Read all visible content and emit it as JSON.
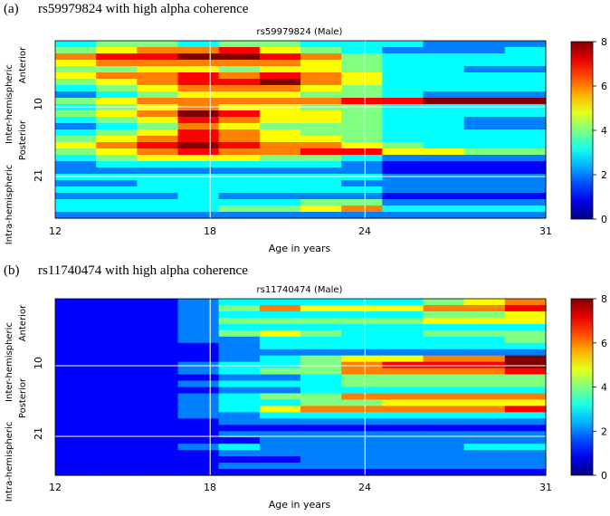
{
  "chart_data": [
    {
      "type": "heatmap",
      "panel_label": "(a)",
      "panel_title": "rs59979824 with high alpha coherence",
      "title": "rs59979824 (Male)",
      "xlabel": "Age in years",
      "x_ticks": [
        "12",
        "18",
        "24",
        "31"
      ],
      "xlim": [
        12,
        31
      ],
      "y_tick_labels": [
        "10",
        "21"
      ],
      "y_group_labels": [
        "Anterior",
        "Posterior",
        "Inter-hemispheric",
        "Intra-hemispheric"
      ],
      "colorbar": {
        "ticks": [
          "0",
          "2",
          "4",
          "6",
          "8"
        ],
        "range": [
          0,
          8
        ],
        "colormap": "jet"
      },
      "rows": 28,
      "grid": true,
      "row_values": [
        [
          3,
          4,
          4,
          3,
          4,
          4,
          3,
          3,
          3,
          2,
          2,
          2
        ],
        [
          4,
          5,
          6,
          6,
          7,
          5,
          4,
          3,
          2,
          2,
          2,
          3
        ],
        [
          6,
          7,
          7,
          8,
          8,
          7,
          6,
          4,
          3,
          3,
          3,
          3
        ],
        [
          5,
          6,
          6,
          6,
          6,
          6,
          5,
          4,
          3,
          3,
          3,
          3
        ],
        [
          4,
          4,
          5,
          5,
          4,
          5,
          5,
          4,
          3,
          3,
          2,
          2
        ],
        [
          5,
          6,
          6,
          7,
          6,
          7,
          6,
          5,
          3,
          3,
          3,
          3
        ],
        [
          4,
          5,
          6,
          7,
          7,
          8,
          6,
          5,
          3,
          3,
          3,
          3
        ],
        [
          3,
          4,
          5,
          6,
          6,
          6,
          5,
          4,
          3,
          3,
          3,
          3
        ],
        [
          2,
          3,
          4,
          5,
          5,
          5,
          4,
          4,
          3,
          2,
          2,
          2
        ],
        [
          4,
          5,
          6,
          6,
          6,
          6,
          6,
          7,
          7,
          8,
          8,
          8
        ],
        [
          3,
          4,
          5,
          6,
          5,
          5,
          4,
          4,
          3,
          3,
          3,
          3
        ],
        [
          4,
          5,
          6,
          8,
          7,
          5,
          5,
          4,
          3,
          3,
          3,
          3
        ],
        [
          3,
          4,
          5,
          7,
          6,
          5,
          5,
          4,
          3,
          3,
          2,
          2
        ],
        [
          2,
          3,
          4,
          6,
          5,
          4,
          4,
          4,
          3,
          3,
          2,
          2
        ],
        [
          3,
          4,
          5,
          7,
          6,
          5,
          4,
          4,
          3,
          3,
          3,
          3
        ],
        [
          4,
          5,
          6,
          7,
          6,
          5,
          5,
          4,
          3,
          3,
          3,
          3
        ],
        [
          5,
          6,
          7,
          8,
          7,
          6,
          6,
          5,
          4,
          3,
          3,
          3
        ],
        [
          4,
          5,
          6,
          7,
          6,
          6,
          7,
          7,
          5,
          5,
          4,
          4
        ],
        [
          3,
          4,
          5,
          5,
          5,
          4,
          4,
          3,
          2,
          2,
          2,
          2
        ],
        [
          2,
          3,
          3,
          3,
          3,
          3,
          3,
          2,
          1,
          1,
          1,
          1
        ],
        [
          2,
          2,
          2,
          2,
          2,
          2,
          2,
          2,
          1,
          1,
          1,
          1
        ],
        [
          3,
          3,
          3,
          3,
          3,
          3,
          3,
          3,
          2,
          2,
          2,
          2
        ],
        [
          2,
          2,
          3,
          3,
          3,
          3,
          3,
          2,
          2,
          2,
          2,
          2
        ],
        [
          3,
          3,
          3,
          3,
          3,
          3,
          3,
          3,
          2,
          2,
          2,
          2
        ],
        [
          2,
          2,
          2,
          3,
          2,
          2,
          2,
          2,
          1,
          1,
          1,
          1
        ],
        [
          3,
          3,
          3,
          3,
          3,
          3,
          4,
          4,
          2,
          2,
          2,
          2
        ],
        [
          3,
          3,
          3,
          3,
          4,
          4,
          5,
          6,
          3,
          3,
          3,
          3
        ],
        [
          2,
          2,
          2,
          2,
          2,
          2,
          2,
          2,
          2,
          2,
          2,
          2
        ]
      ]
    },
    {
      "type": "heatmap",
      "panel_label": "(b)",
      "panel_title": "rs11740474 with high alpha coherence",
      "title": "rs11740474 (Male)",
      "xlabel": "Age in years",
      "x_ticks": [
        "12",
        "18",
        "24",
        "31"
      ],
      "xlim": [
        12,
        31
      ],
      "y_tick_labels": [
        "10",
        "21"
      ],
      "y_group_labels": [
        "Anterior",
        "Posterior",
        "Inter-hemispheric",
        "Intra-hemispheric"
      ],
      "colorbar": {
        "ticks": [
          "0",
          "2",
          "4",
          "6",
          "8"
        ],
        "range": [
          0,
          8
        ],
        "colormap": "jet"
      },
      "rows": 28,
      "grid": true,
      "row_values": [
        [
          1,
          1,
          1,
          2,
          3,
          3,
          3,
          3,
          3,
          4,
          5,
          6
        ],
        [
          1,
          1,
          1,
          2,
          4,
          6,
          5,
          5,
          5,
          6,
          6,
          7
        ],
        [
          1,
          1,
          1,
          2,
          3,
          3,
          3,
          3,
          3,
          4,
          4,
          5
        ],
        [
          1,
          1,
          1,
          2,
          4,
          4,
          4,
          4,
          4,
          5,
          5,
          5
        ],
        [
          1,
          1,
          1,
          2,
          3,
          3,
          3,
          3,
          3,
          3,
          3,
          3
        ],
        [
          1,
          1,
          1,
          2,
          4,
          5,
          4,
          3,
          3,
          4,
          4,
          4
        ],
        [
          1,
          1,
          1,
          2,
          2,
          3,
          3,
          3,
          3,
          3,
          3,
          4
        ],
        [
          1,
          1,
          1,
          1,
          2,
          3,
          3,
          3,
          3,
          3,
          3,
          3
        ],
        [
          1,
          1,
          1,
          1,
          2,
          2,
          2,
          2,
          2,
          2,
          2,
          2
        ],
        [
          1,
          1,
          1,
          1,
          2,
          3,
          4,
          5,
          5,
          6,
          6,
          8
        ],
        [
          1,
          1,
          1,
          2,
          3,
          3,
          4,
          6,
          7,
          7,
          7,
          8
        ],
        [
          1,
          1,
          1,
          2,
          3,
          4,
          4,
          6,
          6,
          6,
          6,
          7
        ],
        [
          1,
          1,
          1,
          1,
          2,
          2,
          3,
          4,
          4,
          4,
          4,
          4
        ],
        [
          1,
          1,
          1,
          2,
          3,
          3,
          3,
          4,
          4,
          4,
          4,
          4
        ],
        [
          1,
          1,
          1,
          1,
          2,
          2,
          3,
          3,
          3,
          3,
          3,
          3
        ],
        [
          1,
          1,
          1,
          2,
          3,
          4,
          4,
          6,
          6,
          6,
          6,
          6
        ],
        [
          1,
          1,
          1,
          2,
          3,
          3,
          4,
          4,
          5,
          5,
          5,
          5
        ],
        [
          1,
          1,
          1,
          2,
          3,
          5,
          6,
          6,
          6,
          6,
          6,
          7
        ],
        [
          1,
          1,
          1,
          2,
          2,
          3,
          3,
          3,
          3,
          3,
          3,
          3
        ],
        [
          1,
          1,
          1,
          1,
          2,
          2,
          2,
          2,
          2,
          2,
          2,
          2
        ],
        [
          1,
          1,
          1,
          1,
          1,
          1,
          1,
          1,
          1,
          1,
          1,
          1
        ],
        [
          1,
          1,
          1,
          1,
          2,
          2,
          2,
          2,
          2,
          2,
          2,
          2
        ],
        [
          1,
          1,
          1,
          1,
          1,
          2,
          2,
          2,
          2,
          2,
          2,
          2
        ],
        [
          1,
          1,
          1,
          2,
          3,
          2,
          2,
          2,
          2,
          2,
          3,
          3
        ],
        [
          1,
          1,
          1,
          1,
          2,
          2,
          2,
          2,
          2,
          2,
          2,
          2
        ],
        [
          1,
          1,
          1,
          1,
          1,
          1,
          2,
          2,
          2,
          2,
          2,
          2
        ],
        [
          1,
          1,
          1,
          1,
          2,
          2,
          2,
          2,
          2,
          2,
          2,
          2
        ],
        [
          1,
          1,
          1,
          1,
          1,
          1,
          1,
          1,
          1,
          1,
          1,
          1
        ]
      ]
    }
  ]
}
